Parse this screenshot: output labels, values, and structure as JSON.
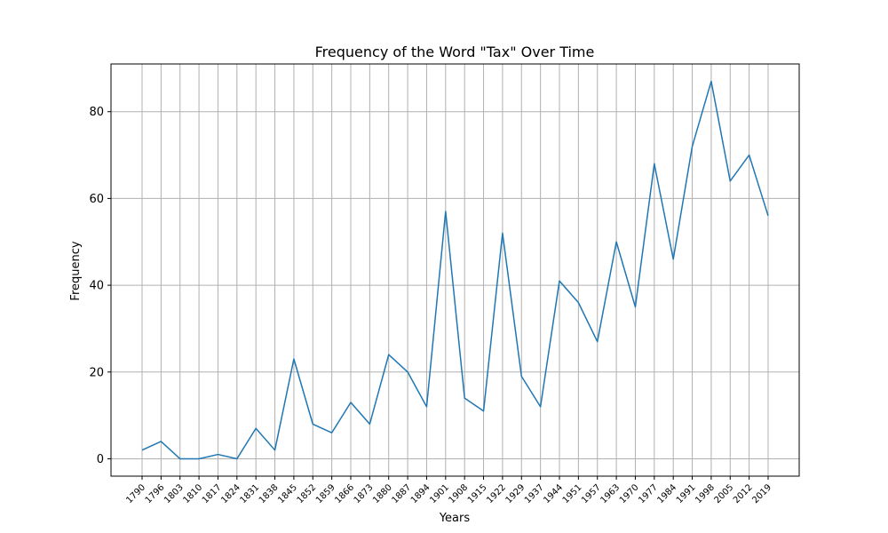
{
  "chart_data": {
    "type": "line",
    "title": "Frequency of the Word \"Tax\" Over Time",
    "xlabel": "Years",
    "ylabel": "Frequency",
    "ylim": [
      -4,
      91
    ],
    "yticks": [
      0,
      20,
      40,
      60,
      80
    ],
    "grid": true,
    "categories": [
      "1790",
      "1796",
      "1803",
      "1810",
      "1817",
      "1824",
      "1831",
      "1838",
      "1845",
      "1852",
      "1859",
      "1866",
      "1873",
      "1880",
      "1887",
      "1894",
      "1901",
      "1908",
      "1915",
      "1922",
      "1929",
      "1937",
      "1944",
      "1951",
      "1957",
      "1963",
      "1970",
      "1977",
      "1984",
      "1991",
      "1998",
      "2005",
      "2012",
      "2019"
    ],
    "series": [
      {
        "color": "#1f77b4",
        "values": [
          2,
          4,
          0,
          0,
          1,
          0,
          7,
          2,
          23,
          8,
          6,
          13,
          8,
          24,
          20,
          12,
          57,
          14,
          11,
          52,
          19,
          12,
          41,
          36,
          27,
          50,
          35,
          68,
          46,
          72,
          87,
          64,
          70,
          56
        ]
      }
    ]
  }
}
